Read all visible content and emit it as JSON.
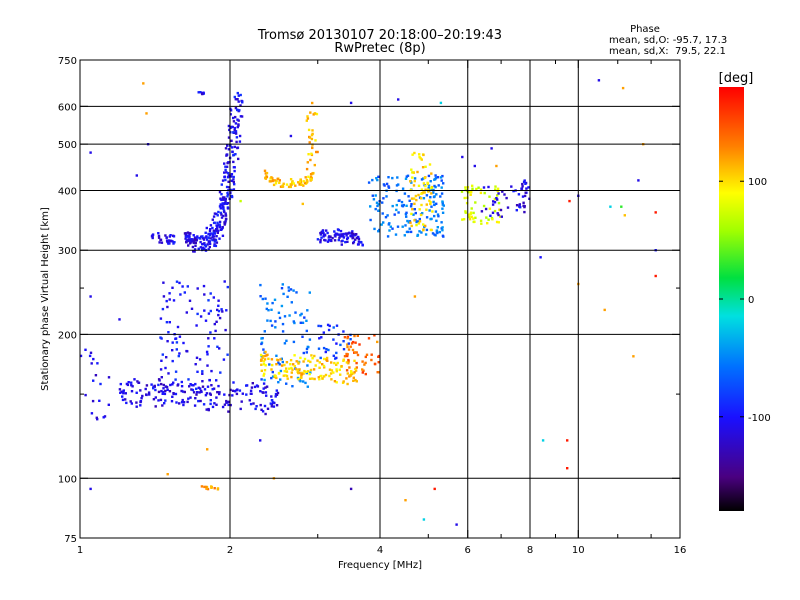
{
  "chart_data": {
    "type": "scatter",
    "title": "Tromsø 20130107 20:18:00–20:19:43",
    "subtitle": "RwPretec (8p)",
    "xlabel": "Frequency [MHz]",
    "ylabel": "Stationary phase Virtual Height [km]",
    "x_scale": "log",
    "y_scale": "log",
    "xlim": [
      1,
      16
    ],
    "ylim": [
      75,
      750
    ],
    "x_ticks": [
      1,
      2,
      4,
      6,
      8,
      10,
      16
    ],
    "x_minor_ticks": [
      3,
      5,
      7,
      9,
      12,
      14
    ],
    "y_ticks": [
      75,
      100,
      200,
      300,
      400,
      500,
      600,
      750
    ],
    "y_minor_ticks": [
      150,
      250
    ],
    "grid": true,
    "phase_stats": {
      "header": "Phase",
      "line1": "mean, sd,O: -95.7, 17.3",
      "line2": "mean, sd,X:  79.5, 22.1"
    },
    "colorbar": {
      "label": "[deg]",
      "range": [
        -180,
        180
      ],
      "ticks": [
        100,
        0,
        -100
      ]
    },
    "clusters": [
      {
        "x": [
          1.68,
          2.08
        ],
        "y": [
          310,
          640
        ],
        "phase": -105,
        "n": 260,
        "shape": "curve-up"
      },
      {
        "x": [
          1.38,
          1.55
        ],
        "y": [
          305,
          330
        ],
        "phase": -110,
        "n": 30,
        "shape": "flat"
      },
      {
        "x": [
          1.62,
          1.72
        ],
        "y": [
          305,
          330
        ],
        "phase": -110,
        "n": 40,
        "shape": "flat"
      },
      {
        "x": [
          1.72,
          1.78
        ],
        "y": [
          635,
          645
        ],
        "phase": -110,
        "n": 8,
        "shape": "flat"
      },
      {
        "x": [
          2.35,
          2.95
        ],
        "y": [
          410,
          445
        ],
        "phase": 110,
        "n": 70,
        "shape": "u"
      },
      {
        "x": [
          2.85,
          3.0
        ],
        "y": [
          440,
          615
        ],
        "phase": 110,
        "n": 30,
        "shape": "vertical"
      },
      {
        "x": [
          3.0,
          3.7
        ],
        "y": [
          305,
          335
        ],
        "phase": -110,
        "n": 90,
        "shape": "flat"
      },
      {
        "x": [
          3.8,
          5.4
        ],
        "y": [
          320,
          430
        ],
        "phase": -60,
        "n": 170,
        "shape": "blob"
      },
      {
        "x": [
          4.6,
          5.1
        ],
        "y": [
          330,
          480
        ],
        "phase": 100,
        "n": 70,
        "shape": "blob"
      },
      {
        "x": [
          5.8,
          7.0
        ],
        "y": [
          340,
          410
        ],
        "phase": 80,
        "n": 60,
        "shape": "blob"
      },
      {
        "x": [
          6.4,
          7.8
        ],
        "y": [
          350,
          410
        ],
        "phase": -110,
        "n": 30,
        "shape": "blob"
      },
      {
        "x": [
          7.6,
          8.0
        ],
        "y": [
          350,
          420
        ],
        "phase": -110,
        "n": 20,
        "shape": "blob"
      },
      {
        "x": [
          1.2,
          2.5
        ],
        "y": [
          135,
          165
        ],
        "phase": -110,
        "n": 200,
        "shape": "flat"
      },
      {
        "x": [
          1.45,
          1.98
        ],
        "y": [
          150,
          260
        ],
        "phase": -100,
        "n": 110,
        "shape": "vertical"
      },
      {
        "x": [
          1.0,
          1.15
        ],
        "y": [
          130,
          190
        ],
        "phase": -110,
        "n": 20,
        "shape": "blob"
      },
      {
        "x": [
          2.3,
          2.9
        ],
        "y": [
          155,
          260
        ],
        "phase": -60,
        "n": 90,
        "shape": "vertical"
      },
      {
        "x": [
          2.3,
          3.6
        ],
        "y": [
          155,
          185
        ],
        "phase": 105,
        "n": 150,
        "shape": "flat"
      },
      {
        "x": [
          3.4,
          4.0
        ],
        "y": [
          165,
          200
        ],
        "phase": 140,
        "n": 50,
        "shape": "blob"
      },
      {
        "x": [
          3.0,
          3.5
        ],
        "y": [
          175,
          210
        ],
        "phase": -80,
        "n": 30,
        "shape": "blob"
      },
      {
        "x": [
          1.75,
          1.9
        ],
        "y": [
          94,
          97
        ],
        "phase": 120,
        "n": 12,
        "shape": "flat"
      }
    ],
    "scattered_points": [
      {
        "x": 1.05,
        "y": 480,
        "phase": -110
      },
      {
        "x": 1.2,
        "y": 215,
        "phase": -110
      },
      {
        "x": 1.3,
        "y": 430,
        "phase": -110
      },
      {
        "x": 1.34,
        "y": 670,
        "phase": 120
      },
      {
        "x": 1.37,
        "y": 500,
        "phase": -110
      },
      {
        "x": 1.36,
        "y": 580,
        "phase": 120
      },
      {
        "x": 1.05,
        "y": 240,
        "phase": -110
      },
      {
        "x": 1.05,
        "y": 95,
        "phase": -110
      },
      {
        "x": 1.5,
        "y": 102,
        "phase": 120
      },
      {
        "x": 1.8,
        "y": 115,
        "phase": 120
      },
      {
        "x": 2.3,
        "y": 120,
        "phase": -110
      },
      {
        "x": 2.1,
        "y": 380,
        "phase": 70
      },
      {
        "x": 2.65,
        "y": 520,
        "phase": -110
      },
      {
        "x": 2.45,
        "y": 100,
        "phase": 120
      },
      {
        "x": 2.8,
        "y": 375,
        "phase": 110
      },
      {
        "x": 3.5,
        "y": 610,
        "phase": -110
      },
      {
        "x": 3.5,
        "y": 95,
        "phase": -130
      },
      {
        "x": 4.35,
        "y": 620,
        "phase": -110
      },
      {
        "x": 4.7,
        "y": 240,
        "phase": 120
      },
      {
        "x": 4.5,
        "y": 90,
        "phase": 120
      },
      {
        "x": 4.9,
        "y": 82,
        "phase": -20
      },
      {
        "x": 5.15,
        "y": 95,
        "phase": 170
      },
      {
        "x": 5.3,
        "y": 610,
        "phase": -20
      },
      {
        "x": 5.85,
        "y": 470,
        "phase": -110
      },
      {
        "x": 6.2,
        "y": 450,
        "phase": -110
      },
      {
        "x": 6.7,
        "y": 490,
        "phase": -110
      },
      {
        "x": 6.85,
        "y": 450,
        "phase": 120
      },
      {
        "x": 5.7,
        "y": 80,
        "phase": -110
      },
      {
        "x": 8.5,
        "y": 120,
        "phase": -20
      },
      {
        "x": 8.4,
        "y": 290,
        "phase": -100
      },
      {
        "x": 9.5,
        "y": 120,
        "phase": 170
      },
      {
        "x": 9.5,
        "y": 105,
        "phase": 170
      },
      {
        "x": 9.6,
        "y": 380,
        "phase": 170
      },
      {
        "x": 10.0,
        "y": 390,
        "phase": -110
      },
      {
        "x": 10.0,
        "y": 255,
        "phase": 120
      },
      {
        "x": 11.0,
        "y": 680,
        "phase": -110
      },
      {
        "x": 11.3,
        "y": 225,
        "phase": 120
      },
      {
        "x": 11.6,
        "y": 370,
        "phase": -20
      },
      {
        "x": 12.3,
        "y": 655,
        "phase": 120
      },
      {
        "x": 12.2,
        "y": 370,
        "phase": 30
      },
      {
        "x": 12.4,
        "y": 355,
        "phase": 110
      },
      {
        "x": 12.9,
        "y": 180,
        "phase": 120
      },
      {
        "x": 13.2,
        "y": 420,
        "phase": -110
      },
      {
        "x": 14.3,
        "y": 360,
        "phase": 170
      },
      {
        "x": 14.3,
        "y": 265,
        "phase": 170
      },
      {
        "x": 14.3,
        "y": 300,
        "phase": -100
      },
      {
        "x": 13.5,
        "y": 500,
        "phase": 120
      }
    ]
  }
}
